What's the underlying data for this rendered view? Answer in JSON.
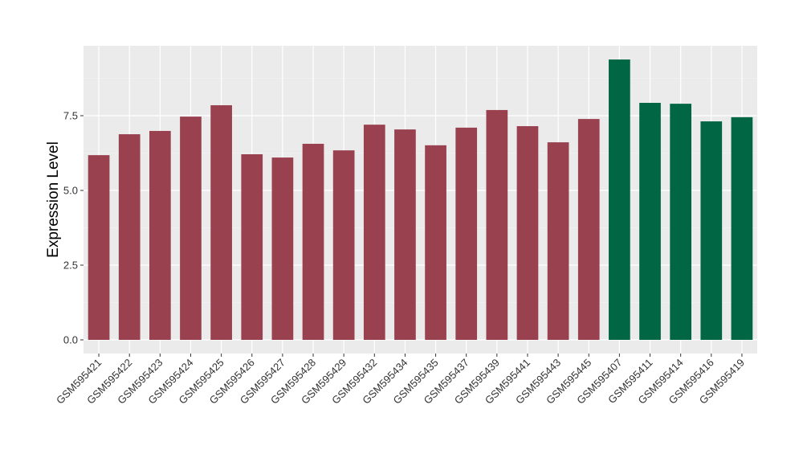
{
  "chart_data": {
    "type": "bar",
    "title": "",
    "xlabel": "",
    "ylabel": "Expression Level",
    "ylim": [
      0,
      10.2
    ],
    "yticks": [
      "0.0",
      "2.5",
      "5.0",
      "7.5"
    ],
    "grid": true,
    "categories": [
      "GSM595421",
      "GSM595422",
      "GSM595423",
      "GSM595424",
      "GSM595425",
      "GSM595426",
      "GSM595427",
      "GSM595428",
      "GSM595429",
      "GSM595432",
      "GSM595434",
      "GSM595435",
      "GSM595437",
      "GSM595439",
      "GSM595441",
      "GSM595443",
      "GSM595445",
      "GSM595407",
      "GSM595411",
      "GSM595414",
      "GSM595416",
      "GSM595419"
    ],
    "values": [
      6.18,
      6.88,
      6.99,
      7.47,
      7.85,
      6.21,
      6.1,
      6.56,
      6.34,
      7.2,
      7.04,
      6.51,
      7.1,
      7.69,
      7.15,
      6.61,
      7.39,
      9.38,
      7.93,
      7.9,
      7.31,
      7.45
    ],
    "bar_colors": [
      "#9a4150",
      "#9a4150",
      "#9a4150",
      "#9a4150",
      "#9a4150",
      "#9a4150",
      "#9a4150",
      "#9a4150",
      "#9a4150",
      "#9a4150",
      "#9a4150",
      "#9a4150",
      "#9a4150",
      "#9a4150",
      "#9a4150",
      "#9a4150",
      "#9a4150",
      "#006644",
      "#006644",
      "#006644",
      "#006644",
      "#006644"
    ],
    "panel_background": "#ebebeb"
  }
}
